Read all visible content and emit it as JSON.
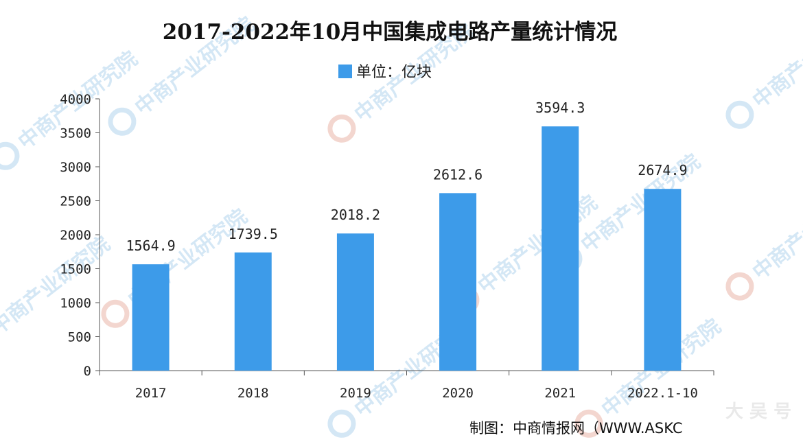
{
  "chart_data": {
    "type": "bar",
    "title": "2017-2022年10月中国集成电路产量统计情况",
    "legend": [
      "单位：亿块"
    ],
    "legend_placement": "top-center",
    "categories": [
      "2017",
      "2018",
      "2019",
      "2020",
      "2021",
      "2022.1-10"
    ],
    "series": [
      {
        "values": [
          1564.9,
          1739.5,
          2018.2,
          2612.6,
          3594.3,
          2674.9
        ]
      }
    ],
    "data_labels": [
      "1564.9",
      "1739.5",
      "2018.2",
      "2612.6",
      "3594.3",
      "2674.9"
    ],
    "yticks": [
      "0",
      "500",
      "1000",
      "1500",
      "2000",
      "2500",
      "3000",
      "3500",
      "4000"
    ],
    "ylim": [
      0,
      4000
    ],
    "grid": false,
    "bar_color": "#3d9be9",
    "source": "制图：中商情报网（WWW.ASKC",
    "watermark": "中商产业研究院",
    "corner_mark": "大 吴 号"
  }
}
